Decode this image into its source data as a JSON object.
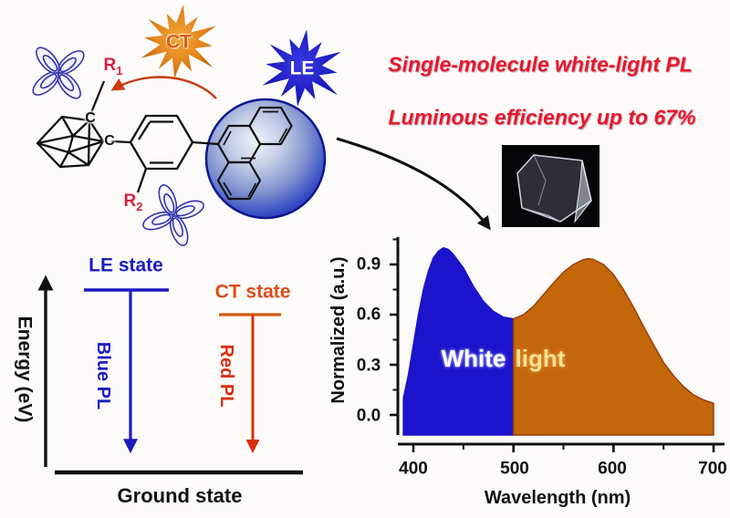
{
  "headline": {
    "line1": "Single-molecule white-light PL",
    "line2": "Luminous efficiency up to 67%"
  },
  "molecule": {
    "ct_badge": "CT",
    "le_badge": "LE",
    "r1": {
      "base": "R",
      "sub": "1"
    },
    "r2": {
      "base": "R",
      "sub": "2"
    },
    "carbon1": "C",
    "carbon2": "C"
  },
  "energy_diagram": {
    "axis_label": "Energy (eV)",
    "le_state": "LE state",
    "ct_state": "CT state",
    "blue_pl": "Blue PL",
    "red_pl": "Red PL",
    "ground": "Ground state"
  },
  "chart": {
    "ylabel": "Normalized (a.u.)",
    "xlabel": "Wavelength (nm)",
    "overlay": {
      "word1": "White",
      "word2": "light"
    },
    "ytick_labels": [
      "0.9",
      "0.6",
      "0.3",
      "0.0"
    ],
    "xtick_labels": [
      "400",
      "500",
      "600",
      "700"
    ]
  },
  "chart_data": {
    "type": "area",
    "title": "",
    "xlabel": "Wavelength (nm)",
    "ylabel": "Normalized (a.u.)",
    "xlim": [
      390,
      700
    ],
    "ylim": [
      0,
      1.05
    ],
    "xticks_major": [
      400,
      500,
      600,
      700
    ],
    "xticks_minor": [
      450,
      550,
      650
    ],
    "yticks_major": [
      0.9,
      0.6,
      0.3,
      0.0
    ],
    "yticks_minor": [
      1.05,
      0.75,
      0.45,
      0.15
    ],
    "annotation": "White light",
    "split_nm": 500,
    "series": [
      {
        "name": "blue LE emission band",
        "color": "#1c13cc",
        "edge": "#1c13cc",
        "range_nm": [
          390,
          500
        ]
      },
      {
        "name": "orange CT emission band",
        "color": "#c4660a",
        "edge": "#9a3d05",
        "range_nm": [
          500,
          700
        ]
      }
    ],
    "x": [
      390,
      395,
      400,
      405,
      410,
      415,
      420,
      425,
      430,
      435,
      440,
      450,
      460,
      470,
      480,
      490,
      500,
      510,
      520,
      530,
      540,
      550,
      560,
      570,
      575,
      580,
      590,
      600,
      610,
      620,
      630,
      640,
      650,
      660,
      670,
      680,
      690,
      700
    ],
    "y": [
      0.1,
      0.24,
      0.42,
      0.6,
      0.75,
      0.86,
      0.94,
      0.98,
      1.0,
      0.99,
      0.96,
      0.88,
      0.77,
      0.68,
      0.62,
      0.585,
      0.575,
      0.6,
      0.65,
      0.72,
      0.79,
      0.855,
      0.9,
      0.93,
      0.935,
      0.93,
      0.9,
      0.84,
      0.75,
      0.645,
      0.53,
      0.42,
      0.315,
      0.235,
      0.17,
      0.12,
      0.09,
      0.07
    ]
  },
  "colors": {
    "headline_red": "#e8182d",
    "ct_orange": "#dd7a14",
    "ct_text": "#e05c12",
    "le_blue": "#1c1cc0",
    "spectrum_blue": "#1c13cc",
    "spectrum_orange": "#c4660a",
    "state_blue": "#1b1bbf",
    "state_red": "#d92f12",
    "ct_state_text": "#e04a18",
    "label_red": "#d61f38",
    "white_word": "#ffffff",
    "light_word": "#f8e093"
  }
}
